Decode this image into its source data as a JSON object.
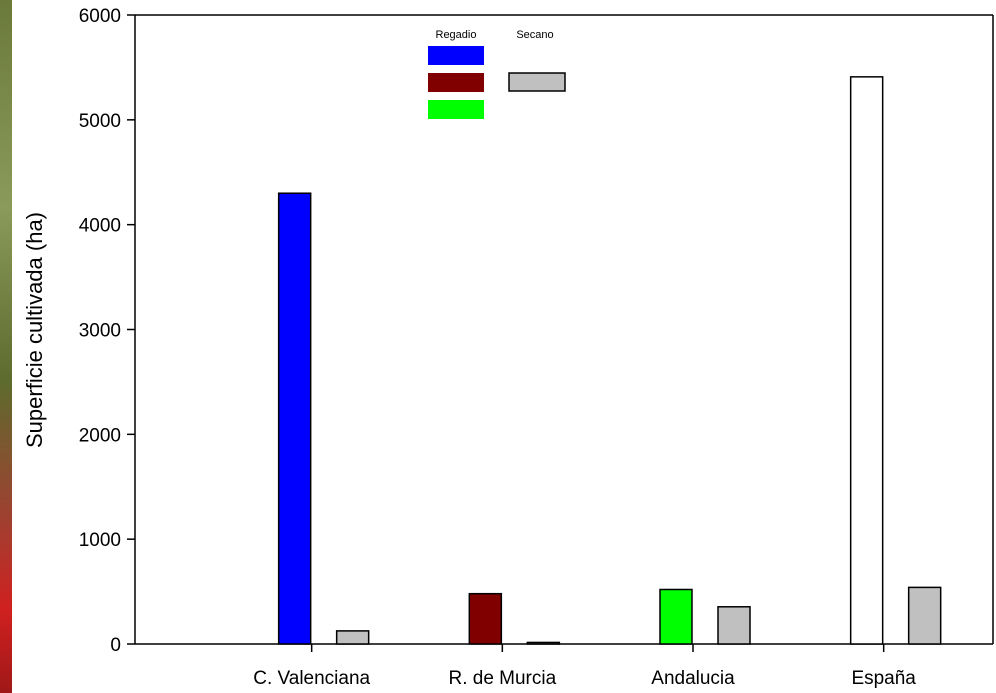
{
  "chart_data": {
    "type": "bar",
    "ylabel": "Superficie cultivada (ha)",
    "xlabel": "",
    "ylim": [
      0,
      6000
    ],
    "yticks": [
      0,
      1000,
      2000,
      3000,
      4000,
      5000,
      6000
    ],
    "grid": false,
    "categories": [
      "C. Valenciana",
      "R. de Murcia",
      "Andalucia",
      "España"
    ],
    "series": [
      {
        "name": "Regadio",
        "values": [
          4300,
          480,
          520,
          5410
        ],
        "colors": [
          "#0000ff",
          "#800000",
          "#00ff00",
          "#ffffff"
        ]
      },
      {
        "name": "Secano",
        "values": [
          125,
          15,
          355,
          540
        ],
        "colors": [
          "#c0c0c0",
          "#c0c0c0",
          "#c0c0c0",
          "#c0c0c0"
        ]
      }
    ],
    "legend": {
      "placement": "top-center",
      "headers": [
        "Regadio",
        "Secano"
      ],
      "regadio_swatches": [
        "#0000ff",
        "#800000",
        "#00ff00"
      ],
      "secano_swatches": [
        "#c0c0c0"
      ]
    }
  }
}
